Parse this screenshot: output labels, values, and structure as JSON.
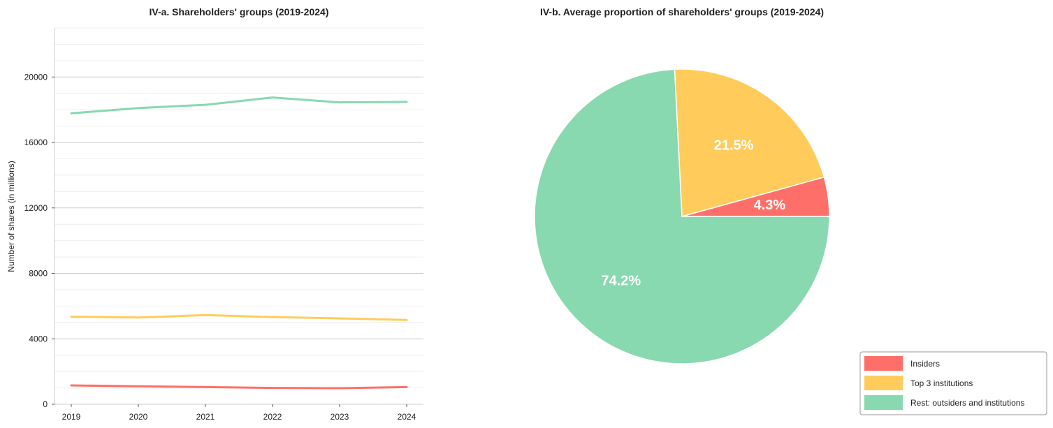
{
  "chart_data": [
    {
      "type": "line",
      "title": "IV-a. Shareholders' groups (2019-2024)",
      "xlabel": "",
      "ylabel": "Number of shares (in millions)",
      "x": [
        "2019",
        "2020",
        "2021",
        "2022",
        "2023",
        "2024"
      ],
      "yticks": [
        "0",
        "4000",
        "8000",
        "12000",
        "16000",
        "20000"
      ],
      "ylim": [
        0,
        23000
      ],
      "grid": true,
      "series": [
        {
          "name": "Insiders",
          "color": "#ff6f69",
          "values": [
            1150,
            1100,
            1050,
            1000,
            980,
            1050
          ]
        },
        {
          "name": "Top 3 institutions",
          "color": "#ffcc5c",
          "values": [
            5350,
            5300,
            5450,
            5330,
            5250,
            5150
          ]
        },
        {
          "name": "Rest: outsiders and institutions",
          "color": "#88d8b0",
          "values": [
            17780,
            18100,
            18300,
            18750,
            18450,
            18480
          ]
        }
      ]
    },
    {
      "type": "pie",
      "title": "IV-b. Average proportion of shareholders' groups (2019-2024)",
      "slices": [
        {
          "name": "Insiders",
          "value": 4.3,
          "label": "4.3%",
          "color": "#ff6f69"
        },
        {
          "name": "Top 3 institutions",
          "value": 21.5,
          "label": "21.5%",
          "color": "#ffcc5c"
        },
        {
          "name": "Rest: outsiders and institutions",
          "value": 74.2,
          "label": "74.2%",
          "color": "#88d8b0"
        }
      ],
      "legend": {
        "placement": "bottom-right",
        "entries": [
          "Insiders",
          "Top 3 institutions",
          "Rest: outsiders and institutions"
        ]
      }
    }
  ]
}
